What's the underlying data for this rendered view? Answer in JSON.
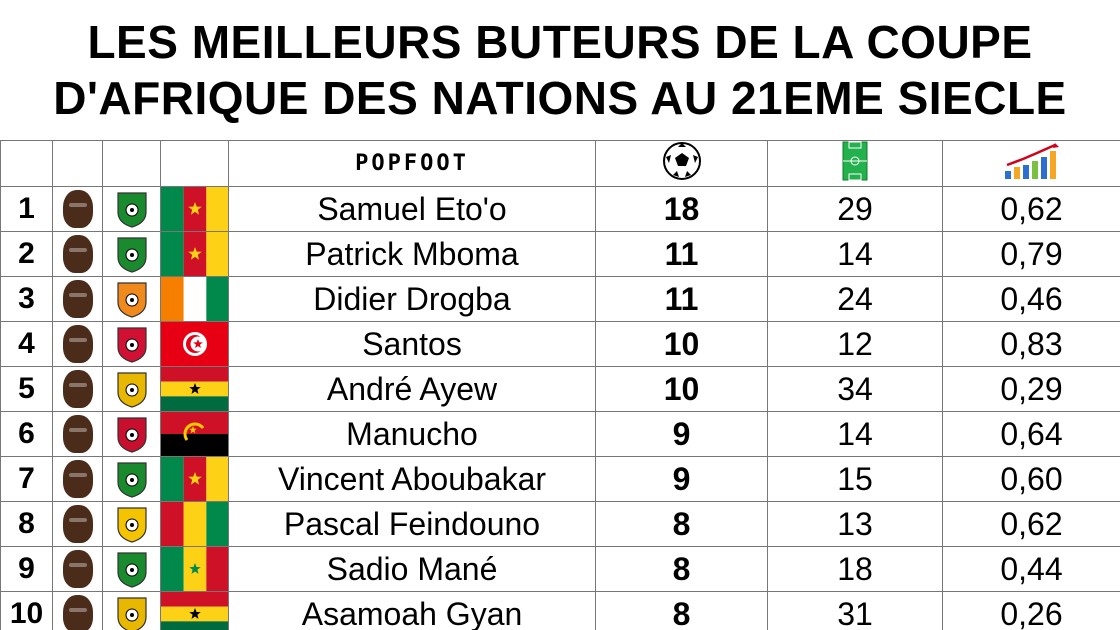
{
  "title": {
    "line1": "LES MEILLEURS BUTEURS DE LA COUPE",
    "line2": "D'AFRIQUE DES NATIONS AU 21EME SIECLE"
  },
  "header": {
    "brand": "POPFOOT",
    "goals_icon": "soccer-ball-icon",
    "matches_icon": "pitch-icon",
    "ratio_icon": "bar-chart-icon"
  },
  "rows": [
    {
      "rank": "1",
      "name": "Samuel Eto'o",
      "goals": "18",
      "matches": "29",
      "ratio": "0,62",
      "flag": "cameroon",
      "crest": "#1a8a2e"
    },
    {
      "rank": "2",
      "name": "Patrick Mboma",
      "goals": "11",
      "matches": "14",
      "ratio": "0,79",
      "flag": "cameroon",
      "crest": "#1a8a2e"
    },
    {
      "rank": "3",
      "name": "Didier Drogba",
      "goals": "11",
      "matches": "24",
      "ratio": "0,46",
      "flag": "ivory-coast",
      "crest": "#f08a1c"
    },
    {
      "rank": "4",
      "name": "Santos",
      "goals": "10",
      "matches": "12",
      "ratio": "0,83",
      "flag": "tunisia",
      "crest": "#d21034"
    },
    {
      "rank": "5",
      "name": "André Ayew",
      "goals": "10",
      "matches": "34",
      "ratio": "0,29",
      "flag": "ghana",
      "crest": "#e8b800"
    },
    {
      "rank": "6",
      "name": "Manucho",
      "goals": "9",
      "matches": "14",
      "ratio": "0,64",
      "flag": "angola",
      "crest": "#c8102e"
    },
    {
      "rank": "7",
      "name": "Vincent Aboubakar",
      "goals": "9",
      "matches": "15",
      "ratio": "0,60",
      "flag": "cameroon",
      "crest": "#1a8a2e"
    },
    {
      "rank": "8",
      "name": "Pascal Feindouno",
      "goals": "8",
      "matches": "13",
      "ratio": "0,62",
      "flag": "guinea",
      "crest": "#f5c400"
    },
    {
      "rank": "9",
      "name": "Sadio Mané",
      "goals": "8",
      "matches": "18",
      "ratio": "0,44",
      "flag": "senegal",
      "crest": "#1a8a2e"
    },
    {
      "rank": "10",
      "name": "Asamoah Gyan",
      "goals": "8",
      "matches": "31",
      "ratio": "0,26",
      "flag": "ghana",
      "crest": "#e8b800"
    }
  ],
  "colors": {
    "green": "#00894a",
    "red": "#ce1126",
    "yellow": "#fcd116",
    "orange": "#f77f00",
    "black": "#000000"
  }
}
